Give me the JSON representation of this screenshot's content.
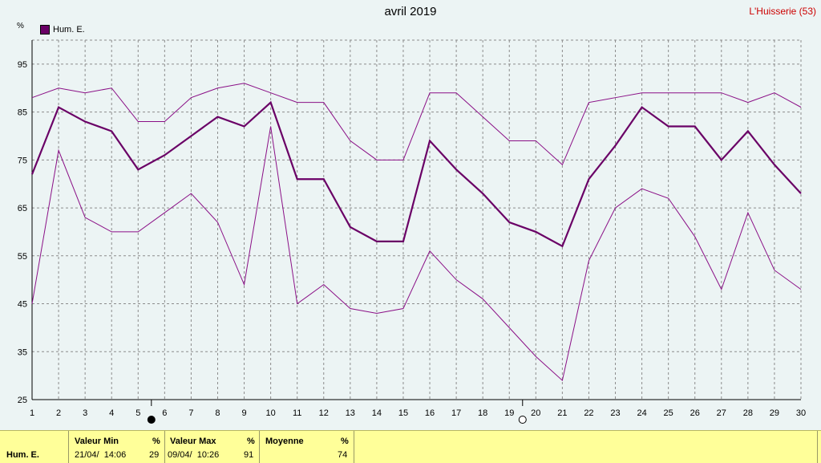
{
  "chart_data": {
    "type": "line",
    "title": "avril 2019",
    "location": "L'Huisserie (53)",
    "ylabel": "%",
    "ylim": [
      25,
      100
    ],
    "yticks": [
      25,
      35,
      45,
      55,
      65,
      75,
      85,
      95
    ],
    "grid": true,
    "legend_position": "top-left",
    "x": [
      1,
      2,
      3,
      4,
      5,
      6,
      7,
      8,
      9,
      10,
      11,
      12,
      13,
      14,
      15,
      16,
      17,
      18,
      19,
      20,
      21,
      22,
      23,
      24,
      25,
      26,
      27,
      28,
      29,
      30
    ],
    "series": [
      {
        "name": "Hum. E.",
        "role": "mean",
        "values": [
          72,
          86,
          83,
          81,
          73,
          76,
          80,
          84,
          82,
          87,
          71,
          71,
          61,
          58,
          58,
          79,
          73,
          68,
          62,
          60,
          57,
          71,
          78,
          86,
          82,
          82,
          75,
          81,
          74,
          68
        ]
      },
      {
        "role": "max",
        "values": [
          88,
          90,
          89,
          90,
          83,
          83,
          88,
          90,
          91,
          89,
          87,
          87,
          79,
          75,
          75,
          89,
          89,
          84,
          79,
          79,
          74,
          87,
          88,
          89,
          89,
          89,
          89,
          87,
          89,
          86
        ]
      },
      {
        "role": "min",
        "values": [
          45,
          77,
          63,
          60,
          60,
          64,
          68,
          62,
          49,
          82,
          45,
          49,
          44,
          43,
          44,
          56,
          50,
          46,
          40,
          34,
          29,
          54,
          65,
          69,
          67,
          59,
          48,
          64,
          52,
          48
        ]
      }
    ],
    "colors": {
      "mean": "#6a0066",
      "minmax": "#8a0f86",
      "grid": "#8c8c8c"
    },
    "moon_phases": [
      {
        "day": 5.5,
        "phase": "new-moon"
      },
      {
        "day": 19.5,
        "phase": "full-moon"
      }
    ]
  },
  "stats": {
    "row_label": "Hum. E.",
    "min_header": "Valeur Min",
    "max_header": "Valeur Max",
    "avg_header": "Moyenne",
    "unit": "%",
    "min_date": "21/04/  14:06",
    "min_value": "29",
    "max_date": "09/04/  10:26",
    "max_value": "91",
    "avg_value": "74"
  }
}
